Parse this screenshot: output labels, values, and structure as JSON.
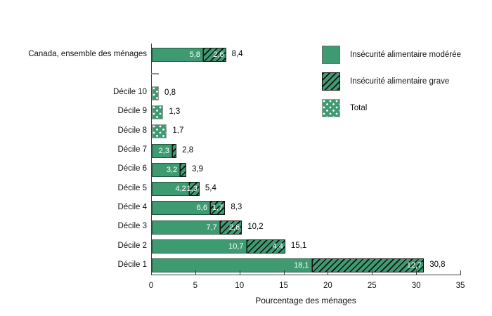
{
  "chart_data": {
    "type": "bar",
    "orientation": "horizontal",
    "title": "",
    "xlabel": "Pourcentage des ménages",
    "ylabel": "",
    "xlim": [
      0,
      35
    ],
    "xticks": [
      0,
      5,
      10,
      15,
      20,
      25,
      30,
      35
    ],
    "grid": false,
    "legend_position": "top-right",
    "colors": {
      "bar_green": "#3e9b71",
      "hatch_line": "#141414",
      "axis": "#3c3c3c",
      "dash_mark": "#909090",
      "label_inside": "#ffffff",
      "label_outside": "#000000"
    },
    "series": [
      {
        "name": "Insécurité alimentaire modérée",
        "pattern": "solid"
      },
      {
        "name": "Insécurité alimentaire grave",
        "pattern": "hatch"
      },
      {
        "name": "Total",
        "pattern": "dots"
      }
    ],
    "rows": [
      {
        "category": "Canada, ensemble des ménages",
        "type": "stacked",
        "moderee": 5.8,
        "moderee_label": "5,8",
        "grave": 2.6,
        "grave_label": "2,6",
        "total": 8.4,
        "total_label": "8,4"
      },
      {
        "category": "",
        "type": "dash"
      },
      {
        "category": "Décile 10",
        "type": "total",
        "total": 0.8,
        "total_label": "0,8"
      },
      {
        "category": "Décile 9",
        "type": "total",
        "total": 1.3,
        "total_label": "1,3"
      },
      {
        "category": "Décile 8",
        "type": "total",
        "total": 1.7,
        "total_label": "1,7"
      },
      {
        "category": "Décile 7",
        "type": "stacked",
        "moderee": 2.3,
        "moderee_label": "2,3",
        "grave": 0.5,
        "grave_label": "",
        "total": 2.8,
        "total_label": "2,8"
      },
      {
        "category": "Décile 6",
        "type": "stacked",
        "moderee": 3.2,
        "moderee_label": "3,2",
        "grave": 0.7,
        "grave_label": "",
        "total": 3.9,
        "total_label": "3,9"
      },
      {
        "category": "Décile 5",
        "type": "stacked",
        "moderee": 4.2,
        "moderee_label": "4,2",
        "grave": 1.3,
        "grave_label": "1,3",
        "total": 5.4,
        "total_label": "5,4"
      },
      {
        "category": "Décile 4",
        "type": "stacked",
        "moderee": 6.6,
        "moderee_label": "6,6",
        "grave": 1.7,
        "grave_label": "1,7",
        "total": 8.3,
        "total_label": "8,3"
      },
      {
        "category": "Décile 3",
        "type": "stacked",
        "moderee": 7.7,
        "moderee_label": "7,7",
        "grave": 2.6,
        "grave_label": "2,6",
        "total": 10.2,
        "total_label": "10,2"
      },
      {
        "category": "Décile 2",
        "type": "stacked",
        "moderee": 10.7,
        "moderee_label": "10,7",
        "grave": 4.4,
        "grave_label": "4,4",
        "total": 15.1,
        "total_label": "15,1"
      },
      {
        "category": "Décile 1",
        "type": "stacked",
        "moderee": 18.1,
        "moderee_label": "18,1",
        "grave": 12.7,
        "grave_label": "12,7",
        "total": 30.8,
        "total_label": "30,8"
      }
    ]
  }
}
